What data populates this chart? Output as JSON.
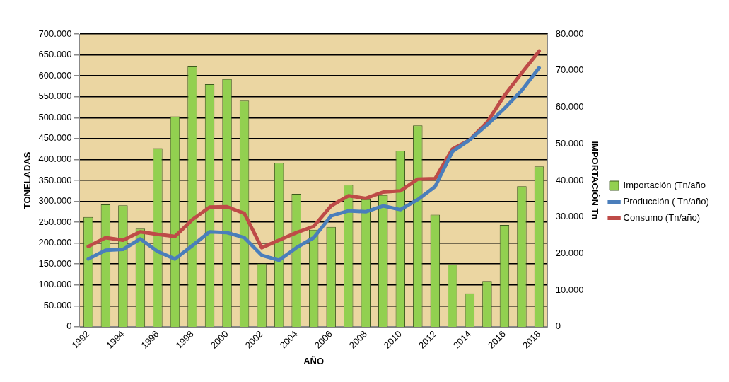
{
  "chart_data": {
    "type": "bar",
    "xlabel": "AÑO",
    "ylabel": "TONELADAS",
    "y2label": "IMPORTACIÓN Tn",
    "categories": [
      "1992",
      null,
      "1994",
      null,
      "1996",
      null,
      "1998",
      null,
      "2000",
      null,
      "2002",
      null,
      "2004",
      null,
      "2006",
      null,
      "2008",
      null,
      "2010",
      null,
      "2012",
      null,
      "2014",
      null,
      "2016",
      null,
      "2018"
    ],
    "series": [
      {
        "name": "Importación (Tn/año",
        "axis": "y2",
        "color": "#92d050",
        "values": [
          30000,
          33400,
          33200,
          26800,
          48800,
          57500,
          71100,
          66300,
          67700,
          61800,
          17300,
          44800,
          36300,
          26500,
          27300,
          38800,
          34800,
          36000,
          48100,
          55000,
          30600,
          17000,
          9100,
          12500,
          27800,
          38400,
          43800
        ]
      },
      {
        "name": "Producción ( Tn/año)",
        "type": "line",
        "color": "#4a7ebb",
        "values": [
          162000,
          183000,
          185000,
          210000,
          180000,
          162000,
          194000,
          227000,
          225000,
          213000,
          171000,
          159000,
          189000,
          213000,
          265000,
          277000,
          275000,
          289000,
          280000,
          304000,
          335000,
          419000,
          447000,
          483000,
          522000,
          565000,
          619000
        ]
      },
      {
        "name": "Consumo (Tn/año)",
        "type": "line",
        "color": "#be4b48",
        "values": [
          192000,
          213000,
          207000,
          227000,
          221000,
          216000,
          256000,
          286000,
          287000,
          271000,
          189000,
          207000,
          225000,
          240000,
          289000,
          313000,
          307000,
          322000,
          325000,
          353000,
          354000,
          425000,
          447000,
          489000,
          553000,
          607000,
          659000
        ]
      }
    ],
    "ylim": [
      0,
      700000
    ],
    "yticks": [
      0,
      {
        "value": 50000,
        "label": "50.000"
      },
      {
        "value": 100000,
        "label": "100.000"
      },
      {
        "value": 150000,
        "label": "150.000"
      },
      {
        "value": 200000,
        "label": "200.000"
      },
      {
        "value": 250000,
        "label": "250.000"
      },
      {
        "value": 300000,
        "label": "300.000"
      },
      {
        "value": 350000,
        "label": "350.000"
      },
      {
        "value": 400000,
        "label": "400.000"
      },
      {
        "value": 450000,
        "label": "450.000"
      },
      {
        "value": 500000,
        "label": "500.000"
      },
      {
        "value": 550000,
        "label": "550.000"
      },
      {
        "value": 600000,
        "label": "600.000"
      },
      {
        "value": 650000,
        "label": "650.000"
      },
      {
        "value": 700000,
        "label": "700.000"
      }
    ],
    "y2lim": [
      0,
      80000
    ],
    "y2ticks": [
      0,
      {
        "value": 10000,
        "label": "10.000"
      },
      {
        "value": 20000,
        "label": "20.000"
      },
      {
        "value": 30000,
        "label": "30.000"
      },
      {
        "value": 40000,
        "label": "40.000"
      },
      {
        "value": 50000,
        "label": "50.000"
      },
      {
        "value": 60000,
        "label": "60.000"
      },
      {
        "value": 70000,
        "label": "70.000"
      },
      {
        "value": 80000,
        "label": "80.000"
      }
    ],
    "grid": "y",
    "legend": "right",
    "marker": "none",
    "line_style": "solid"
  }
}
